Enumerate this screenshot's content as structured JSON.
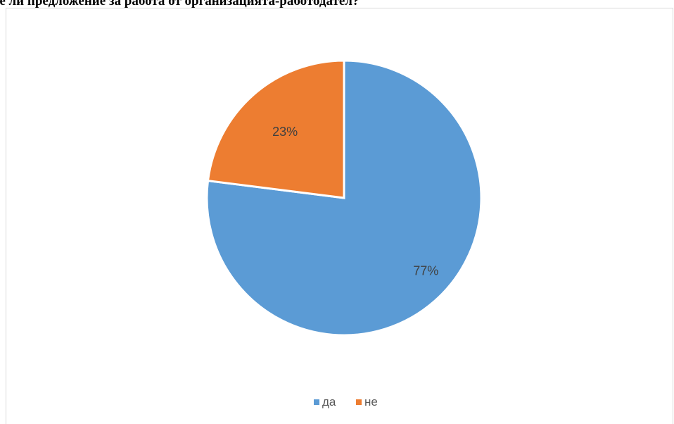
{
  "page": {
    "heading": "те ли предложение за работа от организацията-работодател?"
  },
  "chart_data": {
    "type": "pie",
    "title": "",
    "slices": [
      {
        "name": "да",
        "value": 77,
        "label": "77%",
        "color": "#5b9bd5"
      },
      {
        "name": "не",
        "value": 23,
        "label": "23%",
        "color": "#ed7d31"
      }
    ],
    "legend_position": "bottom",
    "start_angle_deg": 0,
    "direction": "clockwise"
  }
}
